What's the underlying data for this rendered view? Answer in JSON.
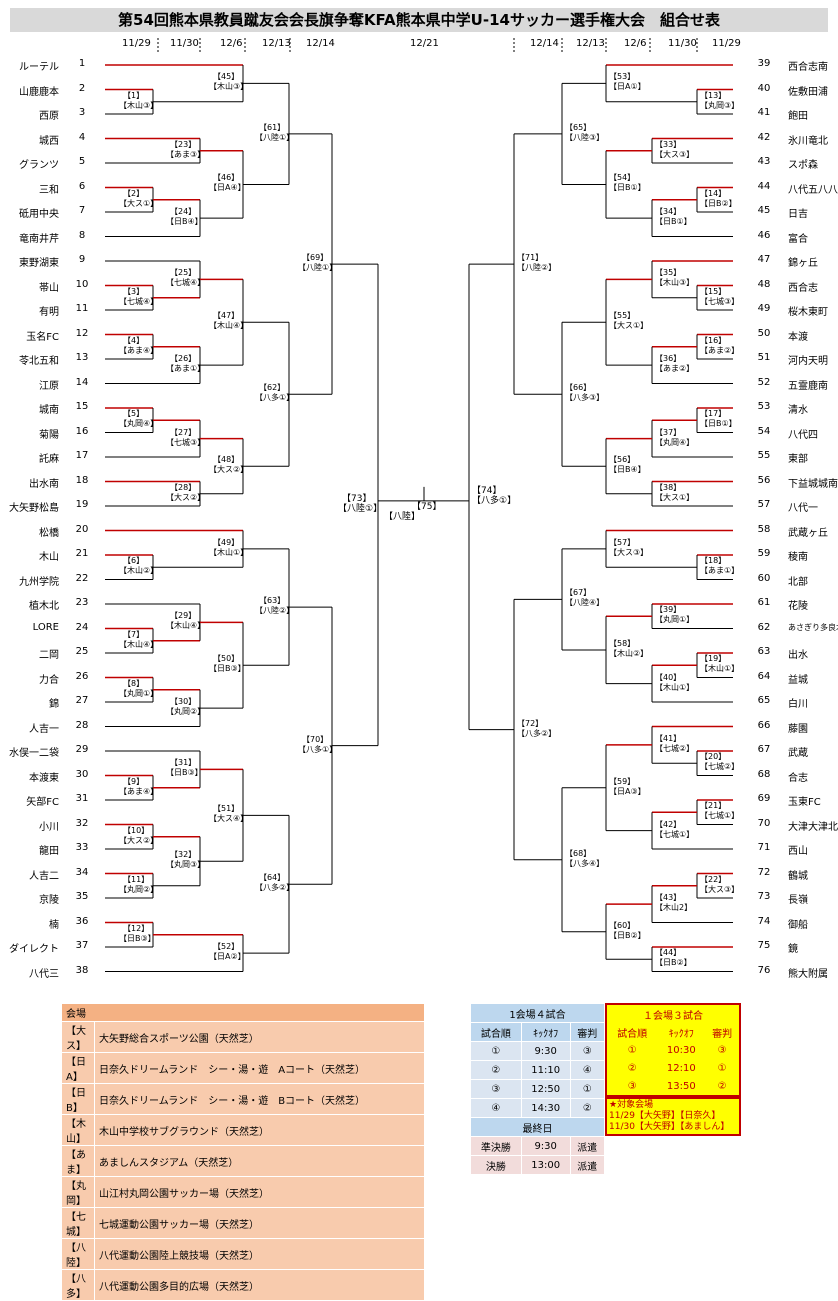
{
  "title": "第54回熊本県教員蹴友会会長旗争奪KFA熊本県中学U-14サッカー選手権大会　組合せ表",
  "dates_left": [
    "11/29",
    "11/30",
    "12/6",
    "12/13",
    "12/14"
  ],
  "dates_right": [
    "12/14",
    "12/13",
    "12/6",
    "11/30",
    "11/29"
  ],
  "date_final": "12/21",
  "teams_left": [
    "ルーテル",
    "山鹿鹿本",
    "西原",
    "城西",
    "グランツ",
    "三和",
    "砥用中央",
    "竜南井芹",
    "東野湖東",
    "帯山",
    "有明",
    "玉名FC",
    "苓北五和",
    "江原",
    "城南",
    "菊陽",
    "託麻",
    "出水南",
    "大矢野松島",
    "松橋",
    "木山",
    "九州学院",
    "植木北",
    "LORE",
    "二岡",
    "力合",
    "錦",
    "人吉一",
    "水俣一二袋",
    "本渡東",
    "矢部FC",
    "小川",
    "龍田",
    "人吉二",
    "京陵",
    "楠",
    "ダイレクト",
    "八代三"
  ],
  "teams_right": [
    "西合志南",
    "佐敷田浦",
    "飽田",
    "氷川竜北",
    "スポ森",
    "八代五八八",
    "日吉",
    "富合",
    "錦ヶ丘",
    "西合志",
    "桜木東町",
    "本渡",
    "河内天明",
    "五霊鹿南",
    "清水",
    "八代四",
    "東部",
    "下益城城南",
    "八代一",
    "武蔵ヶ丘",
    "稜南",
    "北部",
    "花陵",
    "あさぎり多良木",
    "出水",
    "益城",
    "白川",
    "藤園",
    "武蔵",
    "合志",
    "玉東FC",
    "大津大津北",
    "西山",
    "鶴城",
    "長嶺",
    "御船",
    "鏡",
    "熊大附属"
  ],
  "matches_left": [
    {
      "no": "【1】",
      "v": "【木山③】"
    },
    {
      "no": "【2】",
      "v": "【大ス①】"
    },
    {
      "no": "【3】",
      "v": "【七城④】"
    },
    {
      "no": "【4】",
      "v": "【あま④】"
    },
    {
      "no": "【5】",
      "v": "【丸岡④】"
    },
    {
      "no": "【6】",
      "v": "【木山②】"
    },
    {
      "no": "【7】",
      "v": "【木山④】"
    },
    {
      "no": "【8】",
      "v": "【丸岡①】"
    },
    {
      "no": "【9】",
      "v": "【あま④】"
    },
    {
      "no": "【10】",
      "v": "【大ス②】"
    },
    {
      "no": "【11】",
      "v": "【丸岡②】"
    },
    {
      "no": "【12】",
      "v": "【日B③】"
    },
    {
      "no": "【23】",
      "v": "【あま③】"
    },
    {
      "no": "【24】",
      "v": "【日B④】"
    },
    {
      "no": "【25】",
      "v": "【七城④】"
    },
    {
      "no": "【26】",
      "v": "【あま①】"
    },
    {
      "no": "【27】",
      "v": "【七城③】"
    },
    {
      "no": "【28】",
      "v": "【大ス②】"
    },
    {
      "no": "【29】",
      "v": "【木山④】"
    },
    {
      "no": "【30】",
      "v": "【丸岡②】"
    },
    {
      "no": "【31】",
      "v": "【日B③】"
    },
    {
      "no": "【32】",
      "v": "【丸岡③】"
    },
    {
      "no": "【45】",
      "v": "【木山③】"
    },
    {
      "no": "【46】",
      "v": "【日A④】"
    },
    {
      "no": "【47】",
      "v": "【木山④】"
    },
    {
      "no": "【48】",
      "v": "【大ス②】"
    },
    {
      "no": "【49】",
      "v": "【木山①】"
    },
    {
      "no": "【50】",
      "v": "【日B③】"
    },
    {
      "no": "【51】",
      "v": "【大ス④】"
    },
    {
      "no": "【52】",
      "v": "【日A②】"
    },
    {
      "no": "【61】",
      "v": "【八陸①】"
    },
    {
      "no": "【62】",
      "v": "【八多①】"
    },
    {
      "no": "【63】",
      "v": "【八陸②】"
    },
    {
      "no": "【64】",
      "v": "【八多②】"
    },
    {
      "no": "【69】",
      "v": "【八陸①】"
    },
    {
      "no": "【70】",
      "v": "【八多①】"
    },
    {
      "no": "【73】",
      "v": "【八陸①】"
    }
  ],
  "matches_right": [
    {
      "no": "【13】",
      "v": "【丸岡③】"
    },
    {
      "no": "【14】",
      "v": "【日B②】"
    },
    {
      "no": "【15】",
      "v": "【七城③】"
    },
    {
      "no": "【16】",
      "v": "【あま②】"
    },
    {
      "no": "【17】",
      "v": "【日B①】"
    },
    {
      "no": "【18】",
      "v": "【あま①】"
    },
    {
      "no": "【19】",
      "v": "【木山①】"
    },
    {
      "no": "【20】",
      "v": "【七城②】"
    },
    {
      "no": "【21】",
      "v": "【七城①】"
    },
    {
      "no": "【22】",
      "v": "【大ス③】"
    },
    {
      "no": "【33】",
      "v": "【大ス③】"
    },
    {
      "no": "【34】",
      "v": "【日B①】"
    },
    {
      "no": "【35】",
      "v": "【木山③】"
    },
    {
      "no": "【36】",
      "v": "【あま②】"
    },
    {
      "no": "【37】",
      "v": "【丸岡④】"
    },
    {
      "no": "【38】",
      "v": "【大ス①】"
    },
    {
      "no": "【39】",
      "v": "【丸岡①】"
    },
    {
      "no": "【40】",
      "v": "【木山①】"
    },
    {
      "no": "【41】",
      "v": "【七城②】"
    },
    {
      "no": "【42】",
      "v": "【七城①】"
    },
    {
      "no": "【43】",
      "v": "【木山2】"
    },
    {
      "no": "【44】",
      "v": "【日B②】"
    },
    {
      "no": "【53】",
      "v": "【日A①】"
    },
    {
      "no": "【54】",
      "v": "【日B①】"
    },
    {
      "no": "【55】",
      "v": "【大ス①】"
    },
    {
      "no": "【56】",
      "v": "【日B④】"
    },
    {
      "no": "【57】",
      "v": "【大ス③】"
    },
    {
      "no": "【58】",
      "v": "【木山②】"
    },
    {
      "no": "【59】",
      "v": "【日A③】"
    },
    {
      "no": "【60】",
      "v": "【日B②】"
    },
    {
      "no": "【65】",
      "v": "【八陸③】"
    },
    {
      "no": "【66】",
      "v": "【八多③】"
    },
    {
      "no": "【67】",
      "v": "【八陸④】"
    },
    {
      "no": "【68】",
      "v": "【八多④】"
    },
    {
      "no": "【71】",
      "v": "【八陸②】"
    },
    {
      "no": "【72】",
      "v": "【八多②】"
    },
    {
      "no": "【74】",
      "v": "【八多①】"
    }
  ],
  "final": {
    "no": "【75】",
    "v": "【八陸】"
  },
  "venues": {
    "header": "会場",
    "rows": [
      {
        "k": "【大ス】",
        "name": "大矢野総合スポーツ公園（天然芝）"
      },
      {
        "k": "【日A】",
        "name": "日奈久ドリームランド　シー・湯・遊　Aコート（天然芝）"
      },
      {
        "k": "【日B】",
        "name": "日奈久ドリームランド　シー・湯・遊　Bコート（天然芝）"
      },
      {
        "k": "【木山】",
        "name": "木山中学校サブグラウンド（天然芝）"
      },
      {
        "k": "【あま】",
        "name": "あましんスタジアム（天然芝）"
      },
      {
        "k": "【丸岡】",
        "name": "山江村丸岡公園サッカー場（天然芝）"
      },
      {
        "k": "【七城】",
        "name": "七城運動公園サッカー場（天然芝）"
      },
      {
        "k": "【八陸】",
        "name": "八代運動公園陸上競技場（天然芝）"
      },
      {
        "k": "【八多】",
        "name": "八代運動公園多目的広場（天然芝）"
      }
    ]
  },
  "sched4": {
    "title": "1会場４試合",
    "head": [
      "試合順",
      "ｷｯｸｵﾌ",
      "審判"
    ],
    "rows": [
      [
        "①",
        "9:30",
        "③"
      ],
      [
        "②",
        "11:10",
        "④"
      ],
      [
        "③",
        "12:50",
        "①"
      ],
      [
        "④",
        "14:30",
        "②"
      ]
    ],
    "final_title": "最終日",
    "final_rows": [
      [
        "準決勝",
        "9:30",
        "派遣"
      ],
      [
        "決勝",
        "13:00",
        "派遣"
      ]
    ]
  },
  "sched3": {
    "title": "１会場３試合",
    "head": [
      "試合順",
      "ｷｯｸｵﾌ",
      "審判"
    ],
    "rows": [
      [
        "①",
        "10:30",
        "③"
      ],
      [
        "②",
        "12:10",
        "①"
      ],
      [
        "③",
        "13:50",
        "②"
      ]
    ],
    "note": [
      "★対象会場",
      "11/29【大矢野】【日奈久】",
      "11/30【大矢野】【あましん】"
    ]
  },
  "colors": {
    "win": "#c00000",
    "line": "#000000"
  }
}
